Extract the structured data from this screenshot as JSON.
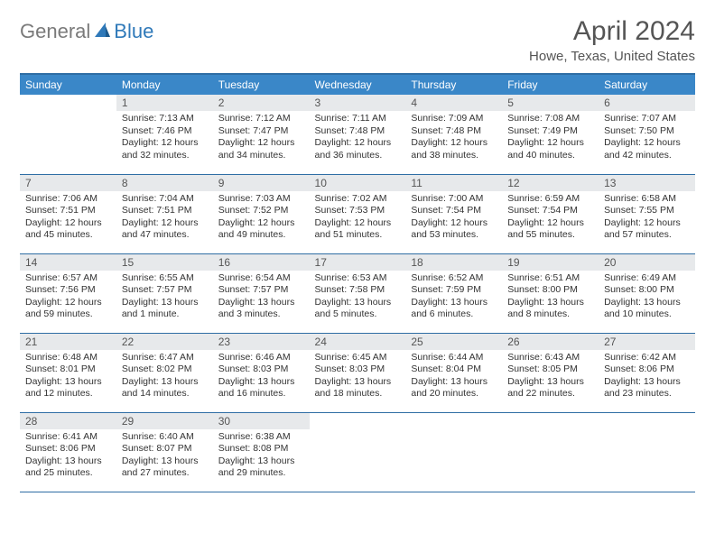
{
  "logo": {
    "part1": "General",
    "part2": "Blue"
  },
  "title": {
    "month": "April 2024",
    "location": "Howe, Texas, United States"
  },
  "colors": {
    "header_bg": "#3a87c8",
    "header_border": "#2e6da4",
    "daynum_bg": "#e7e9eb",
    "logo_gray": "#7a7a7a",
    "logo_blue": "#2f79b9"
  },
  "weekdays": [
    "Sunday",
    "Monday",
    "Tuesday",
    "Wednesday",
    "Thursday",
    "Friday",
    "Saturday"
  ],
  "weeks": [
    [
      {
        "n": "",
        "lines": []
      },
      {
        "n": "1",
        "lines": [
          "Sunrise: 7:13 AM",
          "Sunset: 7:46 PM",
          "Daylight: 12 hours",
          "and 32 minutes."
        ]
      },
      {
        "n": "2",
        "lines": [
          "Sunrise: 7:12 AM",
          "Sunset: 7:47 PM",
          "Daylight: 12 hours",
          "and 34 minutes."
        ]
      },
      {
        "n": "3",
        "lines": [
          "Sunrise: 7:11 AM",
          "Sunset: 7:48 PM",
          "Daylight: 12 hours",
          "and 36 minutes."
        ]
      },
      {
        "n": "4",
        "lines": [
          "Sunrise: 7:09 AM",
          "Sunset: 7:48 PM",
          "Daylight: 12 hours",
          "and 38 minutes."
        ]
      },
      {
        "n": "5",
        "lines": [
          "Sunrise: 7:08 AM",
          "Sunset: 7:49 PM",
          "Daylight: 12 hours",
          "and 40 minutes."
        ]
      },
      {
        "n": "6",
        "lines": [
          "Sunrise: 7:07 AM",
          "Sunset: 7:50 PM",
          "Daylight: 12 hours",
          "and 42 minutes."
        ]
      }
    ],
    [
      {
        "n": "7",
        "lines": [
          "Sunrise: 7:06 AM",
          "Sunset: 7:51 PM",
          "Daylight: 12 hours",
          "and 45 minutes."
        ]
      },
      {
        "n": "8",
        "lines": [
          "Sunrise: 7:04 AM",
          "Sunset: 7:51 PM",
          "Daylight: 12 hours",
          "and 47 minutes."
        ]
      },
      {
        "n": "9",
        "lines": [
          "Sunrise: 7:03 AM",
          "Sunset: 7:52 PM",
          "Daylight: 12 hours",
          "and 49 minutes."
        ]
      },
      {
        "n": "10",
        "lines": [
          "Sunrise: 7:02 AM",
          "Sunset: 7:53 PM",
          "Daylight: 12 hours",
          "and 51 minutes."
        ]
      },
      {
        "n": "11",
        "lines": [
          "Sunrise: 7:00 AM",
          "Sunset: 7:54 PM",
          "Daylight: 12 hours",
          "and 53 minutes."
        ]
      },
      {
        "n": "12",
        "lines": [
          "Sunrise: 6:59 AM",
          "Sunset: 7:54 PM",
          "Daylight: 12 hours",
          "and 55 minutes."
        ]
      },
      {
        "n": "13",
        "lines": [
          "Sunrise: 6:58 AM",
          "Sunset: 7:55 PM",
          "Daylight: 12 hours",
          "and 57 minutes."
        ]
      }
    ],
    [
      {
        "n": "14",
        "lines": [
          "Sunrise: 6:57 AM",
          "Sunset: 7:56 PM",
          "Daylight: 12 hours",
          "and 59 minutes."
        ]
      },
      {
        "n": "15",
        "lines": [
          "Sunrise: 6:55 AM",
          "Sunset: 7:57 PM",
          "Daylight: 13 hours",
          "and 1 minute."
        ]
      },
      {
        "n": "16",
        "lines": [
          "Sunrise: 6:54 AM",
          "Sunset: 7:57 PM",
          "Daylight: 13 hours",
          "and 3 minutes."
        ]
      },
      {
        "n": "17",
        "lines": [
          "Sunrise: 6:53 AM",
          "Sunset: 7:58 PM",
          "Daylight: 13 hours",
          "and 5 minutes."
        ]
      },
      {
        "n": "18",
        "lines": [
          "Sunrise: 6:52 AM",
          "Sunset: 7:59 PM",
          "Daylight: 13 hours",
          "and 6 minutes."
        ]
      },
      {
        "n": "19",
        "lines": [
          "Sunrise: 6:51 AM",
          "Sunset: 8:00 PM",
          "Daylight: 13 hours",
          "and 8 minutes."
        ]
      },
      {
        "n": "20",
        "lines": [
          "Sunrise: 6:49 AM",
          "Sunset: 8:00 PM",
          "Daylight: 13 hours",
          "and 10 minutes."
        ]
      }
    ],
    [
      {
        "n": "21",
        "lines": [
          "Sunrise: 6:48 AM",
          "Sunset: 8:01 PM",
          "Daylight: 13 hours",
          "and 12 minutes."
        ]
      },
      {
        "n": "22",
        "lines": [
          "Sunrise: 6:47 AM",
          "Sunset: 8:02 PM",
          "Daylight: 13 hours",
          "and 14 minutes."
        ]
      },
      {
        "n": "23",
        "lines": [
          "Sunrise: 6:46 AM",
          "Sunset: 8:03 PM",
          "Daylight: 13 hours",
          "and 16 minutes."
        ]
      },
      {
        "n": "24",
        "lines": [
          "Sunrise: 6:45 AM",
          "Sunset: 8:03 PM",
          "Daylight: 13 hours",
          "and 18 minutes."
        ]
      },
      {
        "n": "25",
        "lines": [
          "Sunrise: 6:44 AM",
          "Sunset: 8:04 PM",
          "Daylight: 13 hours",
          "and 20 minutes."
        ]
      },
      {
        "n": "26",
        "lines": [
          "Sunrise: 6:43 AM",
          "Sunset: 8:05 PM",
          "Daylight: 13 hours",
          "and 22 minutes."
        ]
      },
      {
        "n": "27",
        "lines": [
          "Sunrise: 6:42 AM",
          "Sunset: 8:06 PM",
          "Daylight: 13 hours",
          "and 23 minutes."
        ]
      }
    ],
    [
      {
        "n": "28",
        "lines": [
          "Sunrise: 6:41 AM",
          "Sunset: 8:06 PM",
          "Daylight: 13 hours",
          "and 25 minutes."
        ]
      },
      {
        "n": "29",
        "lines": [
          "Sunrise: 6:40 AM",
          "Sunset: 8:07 PM",
          "Daylight: 13 hours",
          "and 27 minutes."
        ]
      },
      {
        "n": "30",
        "lines": [
          "Sunrise: 6:38 AM",
          "Sunset: 8:08 PM",
          "Daylight: 13 hours",
          "and 29 minutes."
        ]
      },
      {
        "n": "",
        "lines": []
      },
      {
        "n": "",
        "lines": []
      },
      {
        "n": "",
        "lines": []
      },
      {
        "n": "",
        "lines": []
      }
    ]
  ]
}
